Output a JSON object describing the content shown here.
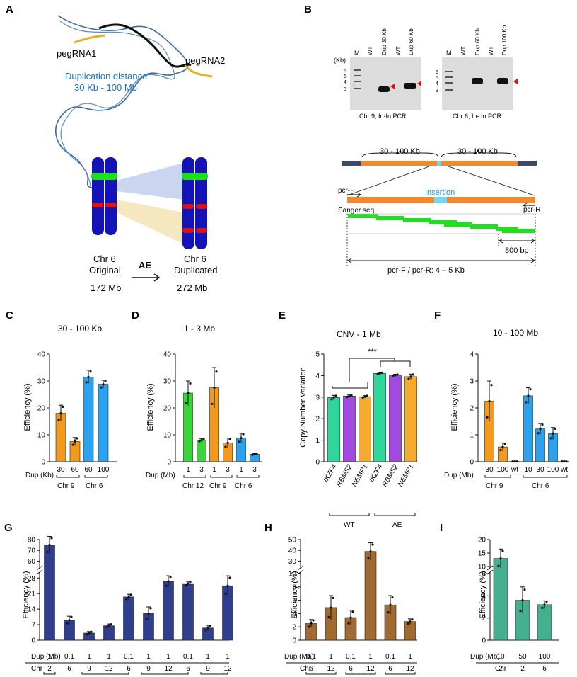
{
  "panels": {
    "A": {
      "letter": "A",
      "peg1": "pegRNA1",
      "peg2": "pegRNA2",
      "dist_line1": "Duplication  distance",
      "dist_line2": "30  Kb  -  100 Mb",
      "orig_line1": "Chr 6",
      "orig_line2": "Original",
      "orig_size": "172 Mb",
      "arrow_label": "AE",
      "dup_line1": "Chr 6",
      "dup_line2": "Duplicated",
      "dup_size": "272  Mb",
      "colors": {
        "chromosome": "#1313b8",
        "green_band": "#19e019",
        "red_band": "#e01010",
        "pegRNA": "#e8b020",
        "dna": "#3a6aa0"
      }
    },
    "B": {
      "letter": "B",
      "gel1": {
        "kb_label": "(Kb)",
        "ladder": [
          "6",
          "5",
          "4",
          "3"
        ],
        "lanes": [
          "M",
          "WT",
          "Dup 30 Kb",
          "WT",
          "Dup 60 Kb"
        ],
        "caption": "Chr 9, In-In PCR"
      },
      "gel2": {
        "ladder": [
          "6",
          "5",
          "4",
          "3"
        ],
        "lanes": [
          "M",
          "WT",
          "Dup 60 Kb",
          "WT",
          "Dup 100 Kb"
        ],
        "caption": "Chr 6, In- In PCR"
      },
      "seg1": "30 - 100 Kb",
      "seg2": "30 - 100 Kb",
      "insertion": "Insertion",
      "pcrF": "pcr-F",
      "pcrR": "pcr-R",
      "sanger": "Sanger seq",
      "bp800": "800  bp",
      "product": "pcr-F / pcr-R: 4 – 5 Kb"
    },
    "C": {
      "letter": "C",
      "title": "30 - 100 Kb",
      "ylabel": "Efficiency (%)",
      "xlabel": "Dup (Kb)",
      "groups": [
        "Chr 9",
        "Chr 6"
      ]
    },
    "D": {
      "letter": "D",
      "title": "1 - 3 Mb",
      "ylabel": "Efficiency (%)",
      "xlabel": "Dup (Mb)",
      "groups": [
        "Chr 12",
        "Chr 9",
        "Chr 6"
      ]
    },
    "E": {
      "letter": "E",
      "title": "CNV - 1 Mb",
      "ylabel": "Copy Number Variation",
      "sig": "***",
      "groups": [
        "WT",
        "AE"
      ]
    },
    "F": {
      "letter": "F",
      "title": "10 - 100 Mb",
      "ylabel": "Efficiency (%)",
      "xlabel": "Dup (Mb)",
      "groups": [
        "Chr 9",
        "Chr 6"
      ]
    },
    "G": {
      "letter": "G",
      "ylabel": "Efficiency (%)",
      "xlabel": "Dup (Mb)",
      "chr_label": "Chr"
    },
    "H": {
      "letter": "H",
      "ylabel": "Efficiency (%)",
      "xlabel": "Dup (Mb)",
      "chr_label": "Chr"
    },
    "I": {
      "letter": "I",
      "ylabel": "Efficiency (%)",
      "xlabel": "Dup (Mb)",
      "chr_label": "Chr"
    }
  },
  "chart_data": [
    {
      "panel": "C",
      "type": "bar",
      "categories": [
        "30",
        "60",
        "60",
        "100"
      ],
      "groups": [
        "Chr 9",
        "Chr 9",
        "Chr 6",
        "Chr 6"
      ],
      "values": [
        18,
        7.5,
        31.5,
        28.8
      ],
      "errors": [
        3,
        1.5,
        2.5,
        1.5
      ],
      "colors": [
        "#f39a1e",
        "#f39a1e",
        "#2aa2f0",
        "#2aa2f0"
      ],
      "ylim": [
        0,
        40
      ],
      "yticks": [
        0,
        10,
        20,
        30,
        40
      ]
    },
    {
      "panel": "D",
      "type": "bar",
      "categories": [
        "1",
        "3",
        "1",
        "3",
        "1",
        "3"
      ],
      "groups": [
        "Chr 12",
        "Chr 12",
        "Chr 9",
        "Chr 9",
        "Chr 6",
        "Chr 6"
      ],
      "values": [
        25.5,
        8,
        27.5,
        7,
        8.8,
        2.8
      ],
      "errors": [
        4.5,
        0.5,
        7.5,
        1.8,
        1.8,
        0.3
      ],
      "colors": [
        "#36d636",
        "#36d636",
        "#f39a1e",
        "#f39a1e",
        "#2aa2f0",
        "#2aa2f0"
      ],
      "ylim": [
        0,
        40
      ],
      "yticks": [
        0,
        10,
        20,
        30,
        40
      ]
    },
    {
      "panel": "E",
      "type": "bar",
      "categories": [
        "IKZF4",
        "RBMS2",
        "NEMP1",
        "IKZF4",
        "RBMS2",
        "NEMP1"
      ],
      "groups": [
        "WT",
        "WT",
        "WT",
        "AE",
        "AE",
        "AE"
      ],
      "values": [
        2.98,
        3.05,
        3.02,
        4.1,
        4.02,
        3.95
      ],
      "errors": [
        0.1,
        0.05,
        0.05,
        0.04,
        0.04,
        0.12
      ],
      "colors": [
        "#2ed69a",
        "#a04ae0",
        "#f5ab2e",
        "#2ed69a",
        "#a04ae0",
        "#f5ab2e"
      ],
      "ylim": [
        0,
        5
      ],
      "yticks": [
        0,
        1,
        2,
        3,
        4,
        5
      ]
    },
    {
      "panel": "F",
      "type": "bar",
      "categories": [
        "30",
        "100",
        "wt",
        "10",
        "30",
        "100",
        "wt"
      ],
      "groups": [
        "Chr 9",
        "Chr 9",
        "Chr 9",
        "Chr 6",
        "Chr 6",
        "Chr 6",
        "Chr 6"
      ],
      "values": [
        2.25,
        0.55,
        0.01,
        2.45,
        1.22,
        1.05,
        0.01
      ],
      "errors": [
        0.75,
        0.15,
        0,
        0.3,
        0.2,
        0.22,
        0
      ],
      "colors": [
        "#f39a1e",
        "#f39a1e",
        "#f39a1e",
        "#2aa2f0",
        "#2aa2f0",
        "#2aa2f0",
        "#2aa2f0"
      ],
      "ylim": [
        0,
        4
      ],
      "yticks": [
        0,
        1,
        2,
        3,
        4
      ]
    },
    {
      "panel": "G",
      "type": "bar",
      "categories": [
        "1",
        "0.1",
        "1",
        "1",
        "0.1",
        "1",
        "1",
        "0.1",
        "1",
        "1"
      ],
      "tick_text": [
        "1",
        "0,1",
        "1",
        "1",
        "0,1",
        "1",
        "1",
        "0,1",
        "1",
        "1"
      ],
      "chr": [
        "2",
        "6",
        "9",
        "12",
        "6",
        "9",
        "12",
        "6",
        "9",
        "12"
      ],
      "values": [
        75,
        9,
        3.2,
        6.5,
        19.5,
        12,
        26.5,
        25.5,
        5.5,
        24.5
      ],
      "errors": [
        8,
        1.8,
        0.7,
        0.8,
        1.2,
        3,
        2.5,
        1,
        1.2,
        4.5
      ],
      "color": "#2f3f8e",
      "axis_break": [
        30,
        55
      ],
      "yticks_low": [
        0,
        7,
        14,
        21,
        28
      ],
      "yticks_high": [
        60,
        70,
        80
      ]
    },
    {
      "panel": "H",
      "type": "bar",
      "categories": [
        "0.1",
        "1",
        "0.1",
        "1",
        "0.1",
        "1"
      ],
      "tick_text": [
        "0,1",
        "1",
        "0,1",
        "1",
        "0,1",
        "1"
      ],
      "chr": [
        "6",
        "12",
        "6",
        "12",
        "6",
        "12"
      ],
      "values": [
        2.5,
        4.9,
        3.4,
        39,
        5.3,
        2.8
      ],
      "errors": [
        0.6,
        1.8,
        1.1,
        8,
        1.4,
        0.4
      ],
      "color": "#a06a30",
      "axis_break": [
        10,
        25
      ],
      "yticks_low": [
        0,
        2,
        4,
        6,
        8,
        10
      ],
      "yticks_high": [
        30,
        40,
        50
      ]
    },
    {
      "panel": "I",
      "type": "bar",
      "categories": [
        "10",
        "50",
        "100"
      ],
      "chr": [
        "2",
        "2",
        "6"
      ],
      "values": [
        13,
        3.6,
        3.2
      ],
      "errors": [
        3.5,
        1.2,
        0.35
      ],
      "color": "#45b090",
      "axis_break": [
        6,
        10
      ],
      "yticks_low": [
        0,
        2,
        4,
        6
      ],
      "yticks_high": [
        10,
        15,
        20
      ]
    }
  ]
}
